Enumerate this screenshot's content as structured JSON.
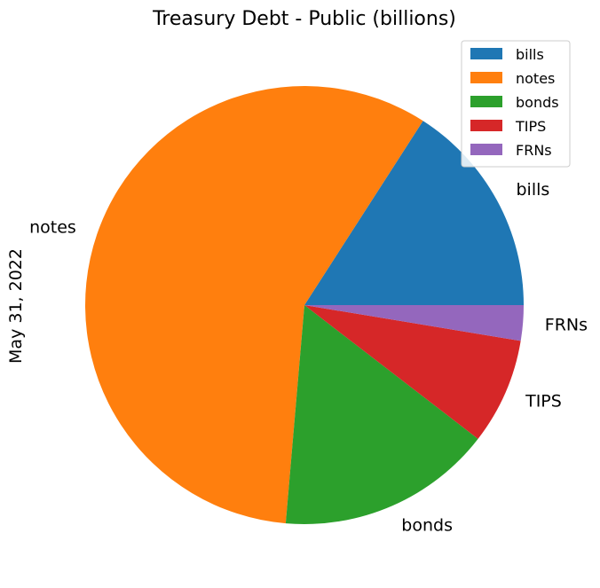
{
  "chart_data": {
    "type": "pie",
    "title": "Treasury Debt - Public (billions)",
    "ylabel": "May 31, 2022",
    "xlabel": "",
    "categories": [
      "bills",
      "notes",
      "bonds",
      "TIPS",
      "FRNs"
    ],
    "values": [
      3650,
      13250,
      3650,
      1800,
      600
    ],
    "colors": [
      "#1f77b4",
      "#ff7f0e",
      "#2ca02c",
      "#d62728",
      "#9467bd"
    ],
    "start_angle": 0,
    "direction": "counterclockwise",
    "legend": {
      "position": "upper right",
      "entries": [
        "bills",
        "notes",
        "bonds",
        "TIPS",
        "FRNs"
      ]
    }
  }
}
